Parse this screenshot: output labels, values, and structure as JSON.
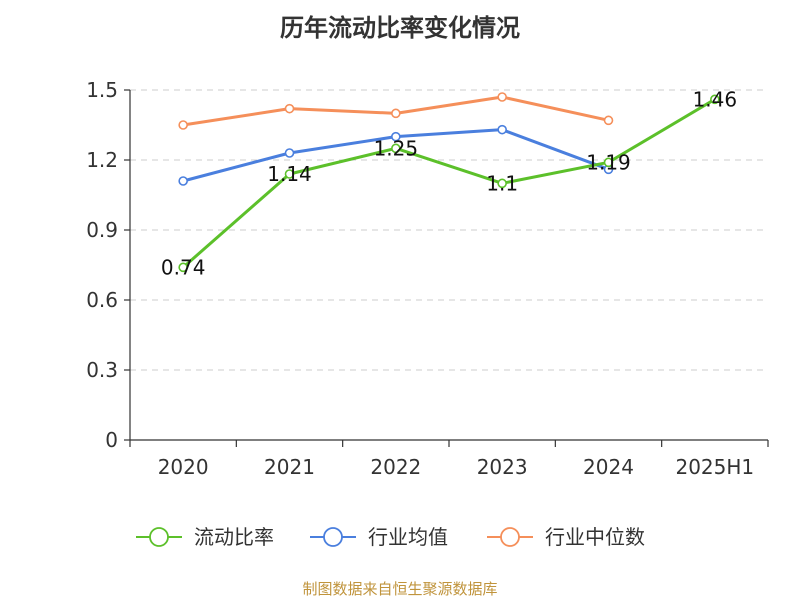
{
  "title": "历年流动比率变化情况",
  "source": "制图数据来自恒生聚源数据库",
  "chart_data": {
    "type": "line",
    "title": "历年流动比率变化情况",
    "categories": [
      "2020",
      "2021",
      "2022",
      "2023",
      "2024",
      "2025H1"
    ],
    "ylim": [
      0,
      1.5
    ],
    "yticks": [
      0,
      0.3,
      0.6,
      0.9,
      1.2,
      1.5
    ],
    "ytick_labels": [
      "0",
      "0.3",
      "0.6",
      "0.9",
      "1.2",
      "1.5"
    ],
    "grid": true,
    "legend_position": "bottom",
    "series": [
      {
        "name": "流动比率",
        "color": "#5cc02a",
        "values": [
          0.74,
          1.14,
          1.25,
          1.1,
          1.19,
          1.46
        ],
        "labels": [
          "0.74",
          "1.14",
          "1.25",
          "1.1",
          "1.19",
          "1.46"
        ]
      },
      {
        "name": "行业均值",
        "color": "#4a7fde",
        "values": [
          1.11,
          1.23,
          1.3,
          1.33,
          1.16,
          null
        ]
      },
      {
        "name": "行业中位数",
        "color": "#f58f5a",
        "values": [
          1.35,
          1.42,
          1.4,
          1.47,
          1.37,
          null
        ]
      }
    ]
  }
}
